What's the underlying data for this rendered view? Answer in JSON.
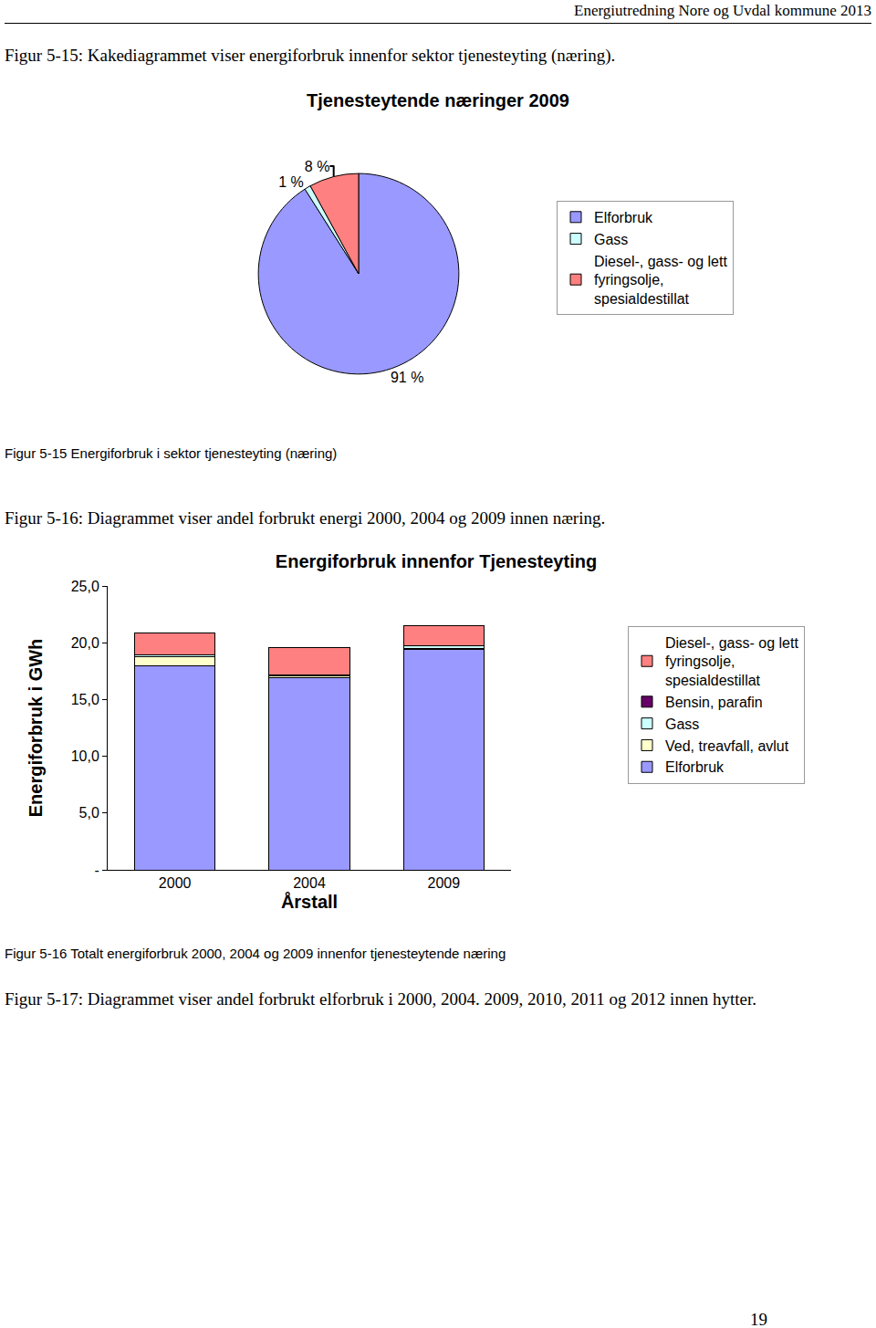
{
  "header": "Energiutredning Nore og Uvdal kommune 2013",
  "texts": {
    "fig15_intro": "Figur 5-15: Kakediagrammet viser energiforbruk innenfor sektor tjenesteyting (næring).",
    "fig15_caption": "Figur 5-15 Energiforbruk i sektor tjenesteyting (næring)",
    "fig16_intro": "Figur 5-16: Diagrammet viser andel forbrukt energi 2000, 2004 og 2009 innen næring.",
    "fig16_caption": "Figur 5-16 Totalt energiforbruk 2000, 2004 og 2009 innenfor tjenesteytende næring",
    "fig17_intro": "Figur 5-17: Diagrammet viser andel forbrukt elforbruk i  2000, 2004. 2009, 2010, 2011 og 2012 innen hytter."
  },
  "page_number": "19",
  "chart_data": [
    {
      "type": "pie",
      "title": "Tjenesteytende næringer 2009",
      "categories": [
        "Elforbruk",
        "Gass",
        "Diesel-, gass- og lett fyringsolje, spesialdestillat"
      ],
      "values": [
        91,
        1,
        8
      ],
      "value_labels": [
        "91 %",
        "1 %",
        "8 %"
      ],
      "colors": [
        "#9999ff",
        "#ccffff",
        "#ff8080"
      ],
      "data_labels": true,
      "legend": "right"
    },
    {
      "type": "bar",
      "title": "Energiforbruk innenfor Tjenesteyting",
      "x_label": "Årstall",
      "y_label": "Energiforbruk i GWh",
      "categories": [
        "2000",
        "2004",
        "2009"
      ],
      "stacked": true,
      "legend": "right",
      "grid": false,
      "ylim": [
        0,
        25
      ],
      "yticks": [
        {
          "value": 0,
          "label": "-"
        },
        {
          "value": 5,
          "label": "5,0"
        },
        {
          "value": 10,
          "label": "10,0"
        },
        {
          "value": 15,
          "label": "15,0"
        },
        {
          "value": 20,
          "label": "20,0"
        },
        {
          "value": 25,
          "label": "25,0"
        }
      ],
      "series": [
        {
          "name": "Elforbruk",
          "color": "#9999ff",
          "values": [
            18.0,
            16.9,
            19.4
          ]
        },
        {
          "name": "Ved, treavfall, avlut",
          "color": "#ffffcc",
          "values": [
            0.8,
            0.2,
            0.1
          ]
        },
        {
          "name": "Gass",
          "color": "#ccffff",
          "values": [
            0.1,
            0.1,
            0.2
          ]
        },
        {
          "name": "Bensin, parafin",
          "color": "#660066",
          "values": [
            0,
            0,
            0
          ]
        },
        {
          "name": "Diesel-, gass- og lett fyringsolje, spesialdestillat",
          "color": "#ff8080",
          "values": [
            2.0,
            2.4,
            1.8
          ]
        }
      ]
    }
  ]
}
